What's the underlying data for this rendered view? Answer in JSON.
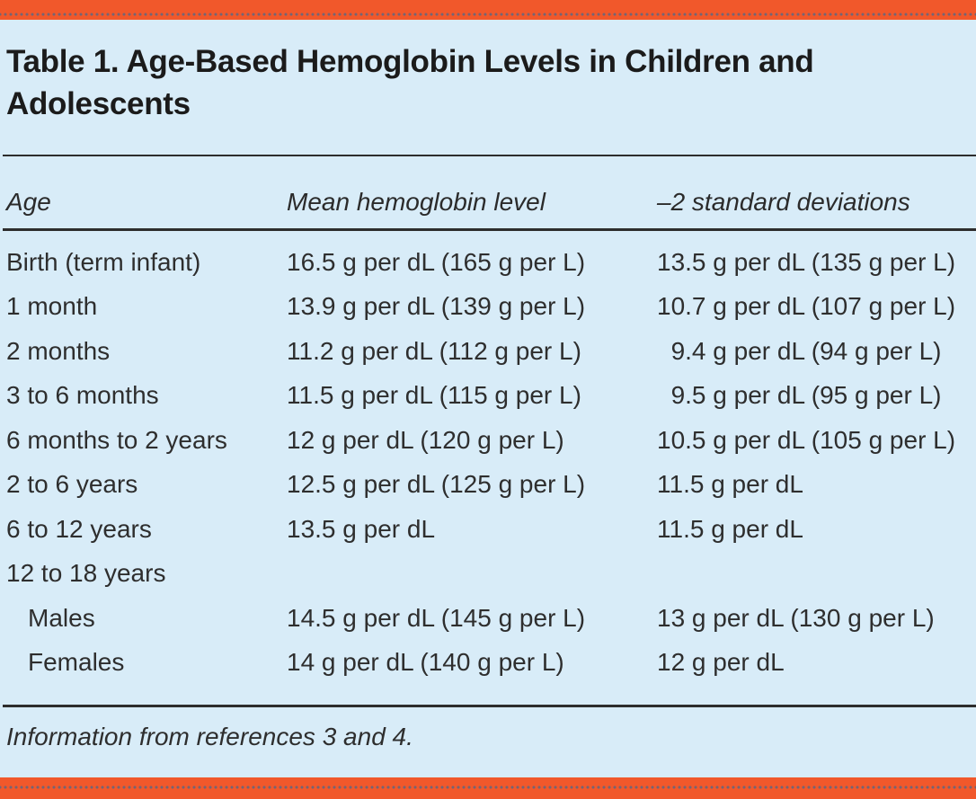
{
  "page": {
    "background_color": "#d8ecf8",
    "accent_bar_color": "#f1582b",
    "rule_color": "#2d2d2d",
    "text_color": "#2e2e2e"
  },
  "table": {
    "title": "Table 1. Age-Based Hemoglobin Levels in Children and Adolescents",
    "columns": [
      "Age",
      "Mean hemoglobin level",
      "–2 standard deviations"
    ],
    "rows": [
      {
        "age": "Birth (term infant)",
        "mean": "16.5 g per dL (165 g per L)",
        "sd": "13.5 g per dL (135 g per L)",
        "indent": false
      },
      {
        "age": "1 month",
        "mean": "13.9 g per dL (139 g per L)",
        "sd": "10.7 g per dL (107 g per L)",
        "indent": false
      },
      {
        "age": "2 months",
        "mean": "11.2 g per dL (112 g per L)",
        "sd": "  9.4 g per dL (94 g per L)",
        "indent": false
      },
      {
        "age": "3 to 6 months",
        "mean": "11.5 g per dL (115 g per L)",
        "sd": "  9.5 g per dL (95 g per L)",
        "indent": false
      },
      {
        "age": "6 months to 2 years",
        "mean": "12 g per dL (120 g per L)",
        "sd": "10.5 g per dL (105 g per L)",
        "indent": false
      },
      {
        "age": "2 to 6 years",
        "mean": "12.5 g per dL (125 g per L)",
        "sd": "11.5 g per dL",
        "indent": false
      },
      {
        "age": "6 to 12 years",
        "mean": "13.5 g per dL",
        "sd": "11.5 g per dL",
        "indent": false
      },
      {
        "age": "12 to 18 years",
        "mean": "",
        "sd": "",
        "indent": false
      },
      {
        "age": "Males",
        "mean": "14.5 g per dL (145 g per L)",
        "sd": "13 g per dL (130 g per L)",
        "indent": true
      },
      {
        "age": "Females",
        "mean": "14 g per dL (140 g per L)",
        "sd": "12 g per dL",
        "indent": true
      }
    ],
    "footnote": "Information from references 3 and 4."
  }
}
